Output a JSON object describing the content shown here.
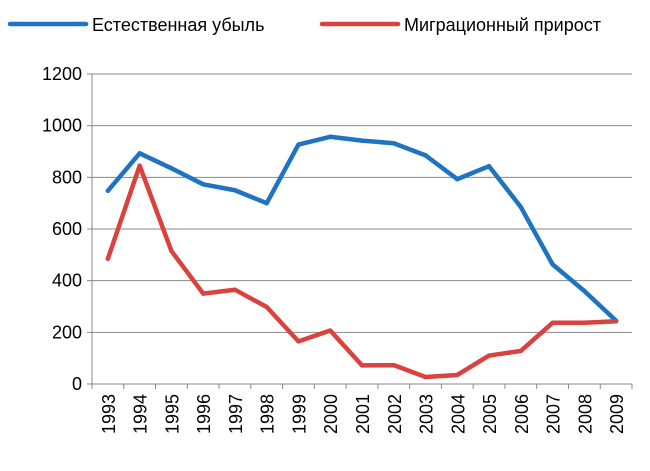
{
  "chart_data": {
    "type": "line",
    "title": "",
    "xlabel": "",
    "ylabel": "",
    "categories": [
      "1993",
      "1994",
      "1995",
      "1996",
      "1997",
      "1998",
      "1999",
      "2000",
      "2001",
      "2002",
      "2003",
      "2004",
      "2005",
      "2006",
      "2007",
      "2008",
      "2009"
    ],
    "ylim": [
      0,
      1200
    ],
    "yticks": [
      0,
      200,
      400,
      600,
      800,
      1000,
      1200
    ],
    "grid": true,
    "legend_position": "top",
    "series": [
      {
        "name": "Естественная убыль",
        "color": "#1f73c3",
        "values": [
          748,
          893,
          835,
          773,
          750,
          700,
          927,
          957,
          942,
          932,
          885,
          793,
          843,
          685,
          463,
          360,
          245
        ]
      },
      {
        "name": "Миграционный прирост",
        "color": "#d9423e",
        "values": [
          485,
          845,
          515,
          350,
          365,
          298,
          165,
          207,
          72,
          73,
          27,
          35,
          110,
          128,
          237,
          237,
          243
        ]
      }
    ]
  }
}
